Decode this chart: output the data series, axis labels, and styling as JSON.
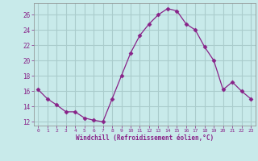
{
  "x": [
    0,
    1,
    2,
    3,
    4,
    5,
    6,
    7,
    8,
    9,
    10,
    11,
    12,
    13,
    14,
    15,
    16,
    17,
    18,
    19,
    20,
    21,
    22,
    23
  ],
  "y": [
    16.2,
    15.0,
    14.2,
    13.3,
    13.3,
    12.5,
    12.2,
    12.0,
    15.0,
    18.0,
    21.0,
    23.3,
    24.8,
    26.0,
    26.8,
    26.5,
    24.8,
    24.0,
    21.8,
    20.0,
    16.2,
    17.2,
    16.0,
    15.0
  ],
  "line_color": "#882288",
  "marker": "D",
  "marker_size": 2.5,
  "bg_color": "#c8eaea",
  "grid_color": "#aacccc",
  "xlabel": "Windchill (Refroidissement éolien,°C)",
  "xlabel_color": "#882288",
  "tick_color": "#882288",
  "ylim": [
    11.5,
    27.5
  ],
  "xlim": [
    -0.5,
    23.5
  ],
  "yticks": [
    12,
    14,
    16,
    18,
    20,
    22,
    24,
    26
  ],
  "xticks": [
    0,
    1,
    2,
    3,
    4,
    5,
    6,
    7,
    8,
    9,
    10,
    11,
    12,
    13,
    14,
    15,
    16,
    17,
    18,
    19,
    20,
    21,
    22,
    23
  ],
  "xtick_labels": [
    "0",
    "1",
    "2",
    "3",
    "4",
    "5",
    "6",
    "7",
    "8",
    "9",
    "10",
    "11",
    "12",
    "13",
    "14",
    "15",
    "16",
    "17",
    "18",
    "19",
    "20",
    "21",
    "22",
    "23"
  ]
}
